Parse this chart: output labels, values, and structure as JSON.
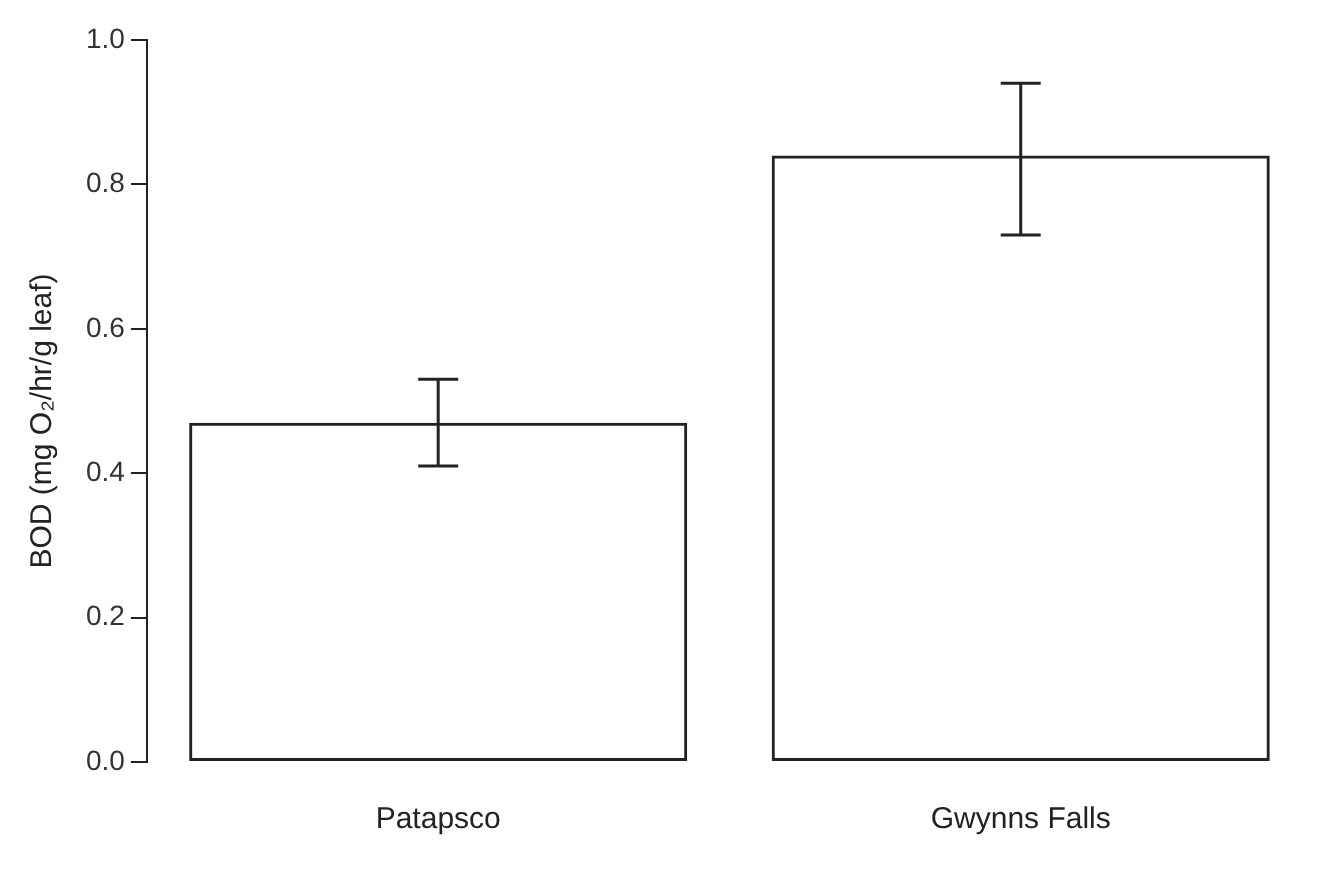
{
  "chart_data": {
    "type": "bar",
    "ylabel": "BOD (mg O₂/hr/g leaf)",
    "categories": [
      "Patapsco",
      "Gwynns Falls"
    ],
    "values": [
      0.47,
      0.84
    ],
    "color": "#222222",
    "errors": [
      [
        0.41,
        0.53
      ],
      [
        0.73,
        0.94
      ]
    ],
    "ylim": [
      0,
      1
    ],
    "yticks": [
      {
        "value": 0,
        "label": "0.0"
      },
      0.2,
      0.4,
      0.6,
      0.8,
      {
        "value": 1,
        "label": "1.0"
      }
    ],
    "grid": false,
    "legend": false
  }
}
